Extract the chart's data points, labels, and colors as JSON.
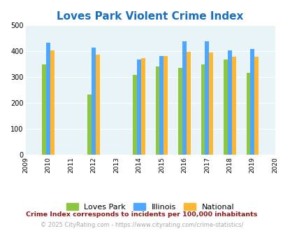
{
  "title": "Loves Park Violent Crime Index",
  "years": [
    2010,
    2012,
    2014,
    2015,
    2016,
    2017,
    2018,
    2019
  ],
  "loves_park": [
    350,
    232,
    310,
    340,
    336,
    348,
    368,
    318
  ],
  "illinois": [
    433,
    415,
    368,
    382,
    438,
    438,
    404,
    408
  ],
  "national": [
    404,
    387,
    375,
    383,
    397,
    394,
    379,
    379
  ],
  "colors": {
    "loves_park": "#8dc63f",
    "illinois": "#4da6ff",
    "national": "#ffb732"
  },
  "xlim": [
    2009,
    2020
  ],
  "ylim": [
    0,
    500
  ],
  "yticks": [
    0,
    100,
    200,
    300,
    400,
    500
  ],
  "xticks": [
    2009,
    2010,
    2011,
    2012,
    2013,
    2014,
    2015,
    2016,
    2017,
    2018,
    2019,
    2020
  ],
  "bg_color": "#e8f4f8",
  "title_color": "#1a6fbd",
  "title_fontsize": 11,
  "legend_labels": [
    "Loves Park",
    "Illinois",
    "National"
  ],
  "footnote1": "Crime Index corresponds to incidents per 100,000 inhabitants",
  "footnote2": "© 2025 CityRating.com - https://www.cityrating.com/crime-statistics/",
  "footnote1_color": "#8b1a1a",
  "footnote2_color": "#aaaaaa",
  "bar_width": 0.18
}
